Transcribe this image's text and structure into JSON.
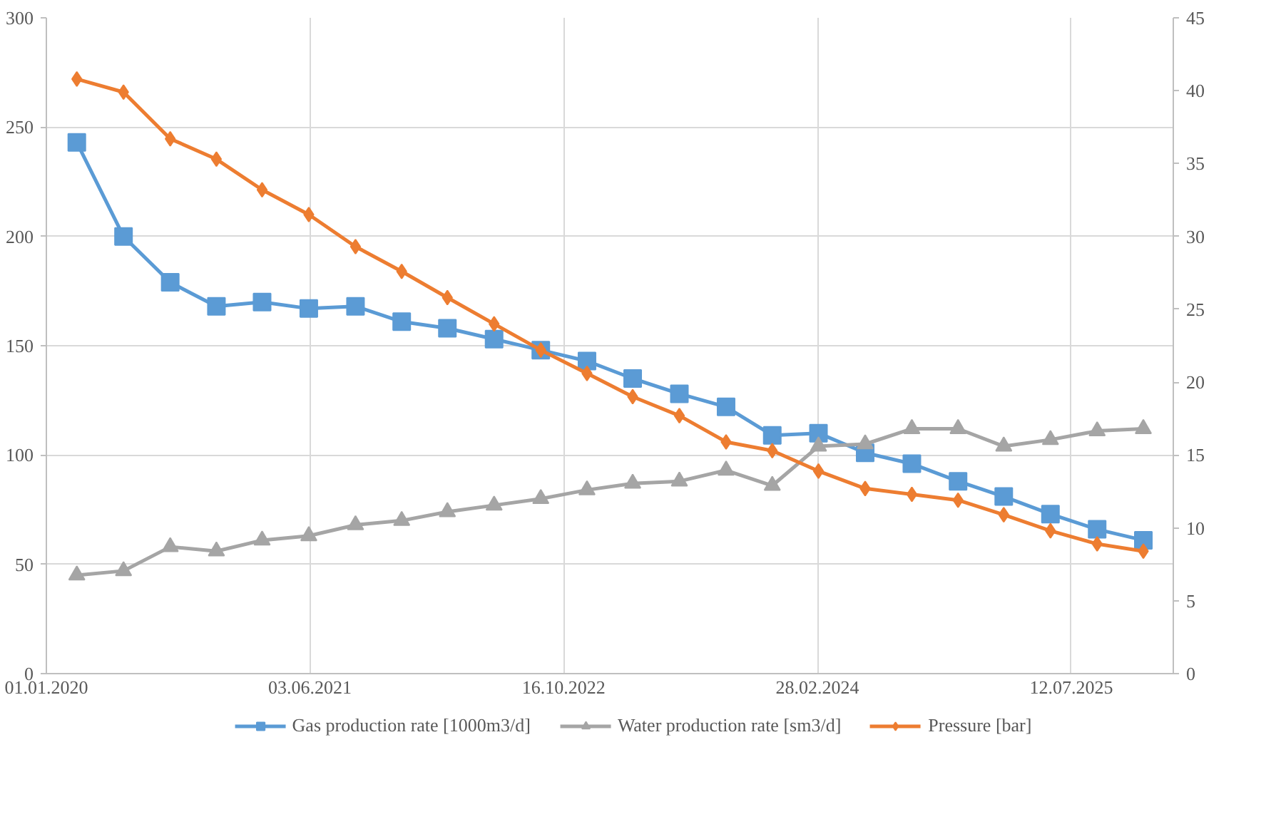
{
  "chart_data": {
    "type": "line",
    "x": [
      "2020-03-01",
      "2020-06-01",
      "2020-09-01",
      "2020-12-01",
      "2021-03-01",
      "2021-06-01",
      "2021-09-01",
      "2021-12-01",
      "2022-03-01",
      "2022-06-01",
      "2022-09-01",
      "2022-12-01",
      "2023-03-01",
      "2023-06-01",
      "2023-09-01",
      "2023-12-01",
      "2024-03-01",
      "2024-06-01",
      "2024-09-01",
      "2024-12-01",
      "2025-03-01",
      "2025-06-01",
      "2025-09-01",
      "2025-12-01"
    ],
    "series": [
      {
        "name": "Gas production rate [1000m3/d]",
        "color": "#5b9bd5",
        "marker": "square",
        "values": [
          243,
          200,
          179,
          168,
          170,
          167,
          168,
          161,
          158,
          153,
          148,
          143,
          135,
          128,
          122,
          109,
          110,
          101,
          96,
          88,
          81,
          73,
          66,
          61
        ]
      },
      {
        "name": "Water production rate [sm3/d]",
        "color": "#a5a5a5",
        "marker": "triangle",
        "values": [
          45,
          47,
          58,
          56,
          61,
          63,
          68,
          70,
          74,
          77,
          80,
          84,
          87,
          88,
          93,
          86,
          104,
          105,
          112,
          112,
          104,
          107,
          111,
          112
        ]
      },
      {
        "name": "Pressure [bar]",
        "color": "#ed7d31",
        "marker": "diamond",
        "axis": "y2",
        "values": [
          40.8,
          39.9,
          36.7,
          35.3,
          33.2,
          31.5,
          29.3,
          27.6,
          25.8,
          24.0,
          22.2,
          20.6,
          19.0,
          17.7,
          15.9,
          15.3,
          13.9,
          12.7,
          12.3,
          11.9,
          10.9,
          9.8,
          8.9,
          8.4
        ]
      }
    ],
    "xlim": [
      "2020-01-01",
      "2026-01-29"
    ],
    "xticks": [
      {
        "value": "2020-01-01",
        "label": "01.01.2020"
      },
      {
        "value": "2021-06-03",
        "label": "03.06.2021"
      },
      {
        "value": "2022-10-16",
        "label": "16.10.2022"
      },
      {
        "value": "2024-02-28",
        "label": "28.02.2024"
      },
      {
        "value": "2025-07-12",
        "label": "12.07.2025"
      }
    ],
    "ylim": [
      0,
      300
    ],
    "yticks": [
      0,
      50,
      100,
      150,
      200,
      250,
      300
    ],
    "y2lim": [
      0,
      45
    ],
    "y2ticks": [
      0,
      5,
      10,
      15,
      20,
      25,
      30,
      35,
      40,
      45
    ],
    "grid": true,
    "legend": "bottom",
    "line_style": "solid"
  }
}
